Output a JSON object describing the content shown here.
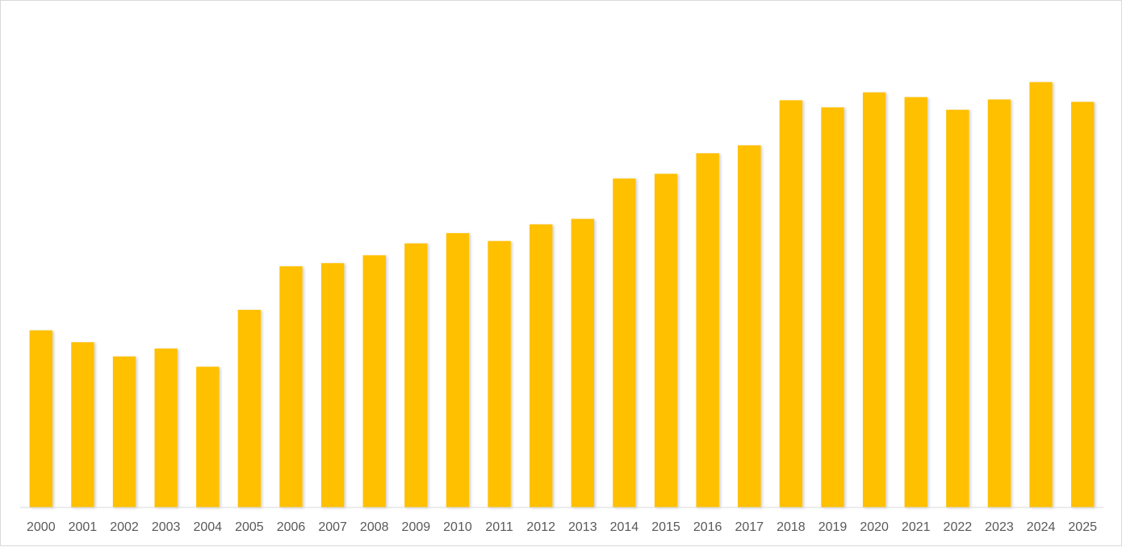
{
  "chart_data": {
    "type": "bar",
    "title": "",
    "xlabel": "",
    "ylabel": "",
    "categories": [
      "2000",
      "2001",
      "2002",
      "2003",
      "2004",
      "2005",
      "2006",
      "2007",
      "2008",
      "2009",
      "2010",
      "2011",
      "2012",
      "2013",
      "2014",
      "2015",
      "2016",
      "2017",
      "2018",
      "2019",
      "2020",
      "2021",
      "2022",
      "2023",
      "2024",
      "2025"
    ],
    "values": [
      224,
      209,
      191,
      201,
      178,
      250,
      305,
      309,
      319,
      334,
      347,
      337,
      358,
      365,
      416,
      422,
      448,
      458,
      515,
      506,
      525,
      519,
      503,
      516,
      538,
      513
    ],
    "ylim": [
      0,
      600
    ],
    "grid": false,
    "legend": "none",
    "colors": {
      "bar": "#FFC000",
      "axis": "#d9d9d9",
      "tick_text": "#595959"
    }
  }
}
